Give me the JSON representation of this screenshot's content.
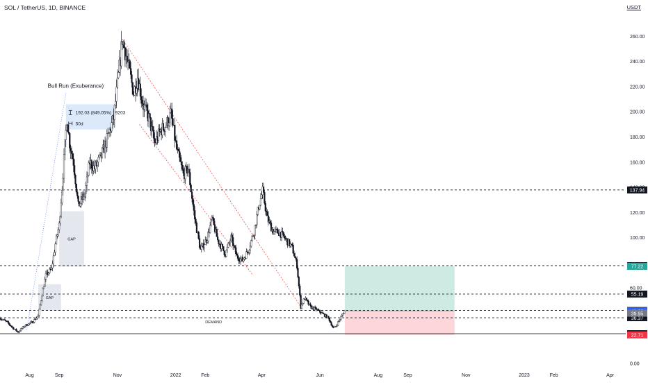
{
  "header": {
    "symbol_title": "SOL / TetherUS, 1D, BINANCE",
    "currency": "USDT"
  },
  "colors": {
    "up": "#131722",
    "down": "#131722",
    "up_fill": "#ffffff",
    "level_line": "#131722",
    "channel": "#ef5350",
    "gap_box": "#e0e3eb",
    "measure_box": "#cfe2f9",
    "target_zone": "#cdebe3",
    "stop_zone": "#fcd6d9",
    "tag_dark": "#131722",
    "tag_green": "#26a69a",
    "tag_red": "#f23645",
    "tag_blue": "#2962ff",
    "tag_gray": "#787b86"
  },
  "chart_data": {
    "type": "candlestick",
    "title": "SOL / TetherUS, 1D, BINANCE",
    "y_unit": "USDT",
    "ylim": [
      0,
      270
    ],
    "xlim": [
      "2021-07-01",
      "2023-04-10"
    ],
    "x_ticks": [
      {
        "date": "2021-08-01",
        "label": "Aug"
      },
      {
        "date": "2021-09-01",
        "label": "Sep"
      },
      {
        "date": "2021-11-01",
        "label": "Nov"
      },
      {
        "date": "2022-01-01",
        "label": "2022"
      },
      {
        "date": "2022-02-01",
        "label": "Feb"
      },
      {
        "date": "2022-04-01",
        "label": "Apr"
      },
      {
        "date": "2022-06-01",
        "label": "Jun"
      },
      {
        "date": "2022-08-01",
        "label": "Aug"
      },
      {
        "date": "2022-09-01",
        "label": "Sep"
      },
      {
        "date": "2022-11-01",
        "label": "Nov"
      },
      {
        "date": "2023-01-01",
        "label": "2023"
      },
      {
        "date": "2023-02-01",
        "label": "Feb"
      },
      {
        "date": "2023-04-01",
        "label": "Apr"
      }
    ],
    "y_ticks": [
      {
        "value": 260,
        "label": "260.00"
      },
      {
        "value": 240,
        "label": "240.00"
      },
      {
        "value": 220,
        "label": "220.00"
      },
      {
        "value": 200,
        "label": "200.00"
      },
      {
        "value": 180,
        "label": "180.00"
      },
      {
        "value": 160,
        "label": "160.00"
      },
      {
        "value": 140,
        "label": "140.00"
      },
      {
        "value": 120,
        "label": "120.00"
      },
      {
        "value": 100,
        "label": "100.00"
      },
      {
        "value": 60,
        "label": "60.00"
      },
      {
        "value": 0,
        "label": "0.00"
      }
    ],
    "price_series": {
      "name": "",
      "interval": "1D",
      "anchors": [
        [
          "2021-07-01",
          36
        ],
        [
          "2021-07-08",
          33
        ],
        [
          "2021-07-15",
          28
        ],
        [
          "2021-07-20",
          25
        ],
        [
          "2021-07-27",
          30
        ],
        [
          "2021-08-04",
          33
        ],
        [
          "2021-08-10",
          38
        ],
        [
          "2021-08-14",
          55
        ],
        [
          "2021-08-18",
          70
        ],
        [
          "2021-08-24",
          75
        ],
        [
          "2021-08-28",
          95
        ],
        [
          "2021-09-01",
          110
        ],
        [
          "2021-09-04",
          140
        ],
        [
          "2021-09-09",
          195
        ],
        [
          "2021-09-12",
          175
        ],
        [
          "2021-09-16",
          160
        ],
        [
          "2021-09-21",
          125
        ],
        [
          "2021-09-28",
          135
        ],
        [
          "2021-10-03",
          160
        ],
        [
          "2021-10-08",
          155
        ],
        [
          "2021-10-15",
          165
        ],
        [
          "2021-10-22",
          180
        ],
        [
          "2021-10-28",
          195
        ],
        [
          "2021-11-03",
          235
        ],
        [
          "2021-11-06",
          258
        ],
        [
          "2021-11-12",
          238
        ],
        [
          "2021-11-18",
          215
        ],
        [
          "2021-11-22",
          228
        ],
        [
          "2021-11-28",
          205
        ],
        [
          "2021-12-04",
          195
        ],
        [
          "2021-12-10",
          175
        ],
        [
          "2021-12-16",
          185
        ],
        [
          "2021-12-22",
          190
        ],
        [
          "2021-12-27",
          198
        ],
        [
          "2022-01-02",
          170
        ],
        [
          "2022-01-09",
          150
        ],
        [
          "2022-01-14",
          155
        ],
        [
          "2022-01-21",
          115
        ],
        [
          "2022-01-27",
          90
        ],
        [
          "2022-02-03",
          100
        ],
        [
          "2022-02-08",
          115
        ],
        [
          "2022-02-14",
          98
        ],
        [
          "2022-02-22",
          87
        ],
        [
          "2022-02-28",
          100
        ],
        [
          "2022-03-06",
          85
        ],
        [
          "2022-03-12",
          82
        ],
        [
          "2022-03-18",
          90
        ],
        [
          "2022-03-24",
          105
        ],
        [
          "2022-03-29",
          125
        ],
        [
          "2022-04-02",
          137
        ],
        [
          "2022-04-07",
          115
        ],
        [
          "2022-04-13",
          105
        ],
        [
          "2022-04-20",
          104
        ],
        [
          "2022-04-27",
          98
        ],
        [
          "2022-05-03",
          92
        ],
        [
          "2022-05-08",
          78
        ],
        [
          "2022-05-12",
          45
        ],
        [
          "2022-05-16",
          52
        ],
        [
          "2022-05-22",
          45
        ],
        [
          "2022-05-28",
          43
        ],
        [
          "2022-06-03",
          40
        ],
        [
          "2022-06-10",
          36
        ],
        [
          "2022-06-15",
          28
        ],
        [
          "2022-06-18",
          30
        ],
        [
          "2022-06-24",
          38
        ],
        [
          "2022-06-27",
          41.8
        ]
      ]
    },
    "horizontal_levels": [
      {
        "value": 137.94,
        "label": "137.94",
        "style": "dashed",
        "tag": "dark"
      },
      {
        "value": 77.74,
        "label": "77.74",
        "style": "dashed",
        "tag": "dark"
      },
      {
        "value": 55.19,
        "label": "55.19",
        "style": "dashed",
        "tag": "dark"
      },
      {
        "value": 42.14,
        "label": "42.14",
        "style": "dashed",
        "tag": "dark"
      },
      {
        "value": 36.37,
        "label": "36.37",
        "style": "dashed",
        "tag": "dark"
      },
      {
        "value": 23.68,
        "label": "23.68",
        "style": "solid",
        "tag": "dark"
      }
    ],
    "price_tags": [
      {
        "value": 77.22,
        "label": "77.22",
        "tag": "green"
      },
      {
        "value": 41.8,
        "label": "41.80",
        "tag": "blue"
      },
      {
        "value": 39.95,
        "label": "39.95",
        "tag": "gray"
      },
      {
        "value": 22.71,
        "label": "22.71",
        "tag": "red"
      }
    ],
    "descending_channel": {
      "upper": [
        [
          "2021-11-06",
          258
        ],
        [
          "2022-05-12",
          45
        ]
      ],
      "lower": [
        [
          "2021-11-24",
          190
        ],
        [
          "2022-03-23",
          70
        ]
      ]
    },
    "gap_zones": [
      {
        "x0": "2021-09-01",
        "x1": "2021-09-27",
        "y0": 77,
        "y1": 121,
        "label": "GAP"
      },
      {
        "x0": "2021-08-10",
        "x1": "2021-09-03",
        "y0": 42,
        "y1": 63,
        "label": "GAP"
      }
    ],
    "demand_zone": {
      "label": "DEMAND",
      "x": "2022-02-01",
      "y": 32
    },
    "annotations": [
      {
        "text": "Bull Run (Exuberance)",
        "x": "2021-08-20",
        "y": 219
      },
      {
        "path": [
          [
            "2021-07-29",
            27
          ],
          [
            "2021-09-08",
            215
          ]
        ],
        "style": "dotted"
      }
    ],
    "measure": {
      "x0": "2021-09-08",
      "x1": "2021-10-28",
      "y0": 186,
      "y1": 206,
      "line1": "192.03 (849.05%) 19203",
      "line2": "50d"
    },
    "position": {
      "x0": "2022-06-27",
      "x1": "2022-10-20",
      "entry": 41.8,
      "target": 77.22,
      "stop": 22.71
    }
  }
}
